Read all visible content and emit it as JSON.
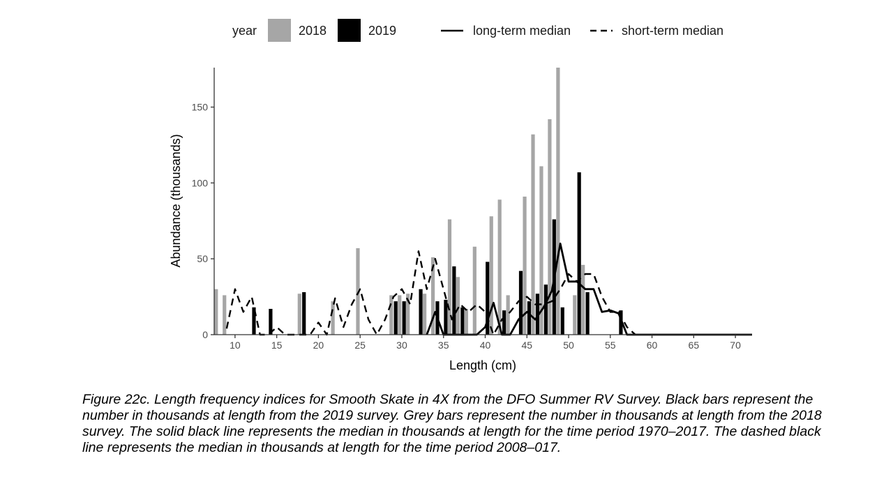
{
  "chart_data": {
    "type": "bar",
    "xlabel": "Length (cm)",
    "ylabel": "Abundance (thousands)",
    "xlim": [
      7.5,
      72
    ],
    "ylim": [
      0,
      176
    ],
    "x_ticks": [
      10,
      15,
      20,
      25,
      30,
      35,
      40,
      45,
      50,
      55,
      60,
      65,
      70
    ],
    "y_ticks": [
      0,
      50,
      100,
      150
    ],
    "legend": {
      "position": "top",
      "year_title": "year",
      "items": [
        {
          "label": "2018",
          "kind": "bar",
          "color": "#a6a6a6"
        },
        {
          "label": "2019",
          "kind": "bar",
          "color": "#000000"
        },
        {
          "label": "long-term median",
          "kind": "line",
          "dash": "solid"
        },
        {
          "label": "short-term median",
          "kind": "line",
          "dash": "dashed"
        }
      ]
    },
    "series": [
      {
        "name": "2018",
        "color": "#a6a6a6",
        "points": [
          [
            8,
            30
          ],
          [
            9,
            26
          ],
          [
            18,
            27
          ],
          [
            22,
            22
          ],
          [
            25,
            57
          ],
          [
            29,
            26
          ],
          [
            30,
            26
          ],
          [
            31,
            27
          ],
          [
            33,
            27
          ],
          [
            34,
            51
          ],
          [
            36,
            76
          ],
          [
            37,
            38
          ],
          [
            38,
            17
          ],
          [
            39,
            58
          ],
          [
            41,
            78
          ],
          [
            42,
            89
          ],
          [
            43,
            26
          ],
          [
            45,
            91
          ],
          [
            46,
            132
          ],
          [
            47,
            111
          ],
          [
            48,
            142
          ],
          [
            49,
            176
          ],
          [
            51,
            26
          ],
          [
            52,
            46
          ]
        ]
      },
      {
        "name": "2019",
        "color": "#000000",
        "points": [
          [
            12,
            18
          ],
          [
            14,
            17
          ],
          [
            18,
            28
          ],
          [
            29,
            22
          ],
          [
            30,
            22
          ],
          [
            32,
            30
          ],
          [
            34,
            22
          ],
          [
            35,
            23
          ],
          [
            36,
            45
          ],
          [
            37,
            18
          ],
          [
            40,
            48
          ],
          [
            42,
            16
          ],
          [
            44,
            42
          ],
          [
            45,
            22
          ],
          [
            46,
            27
          ],
          [
            47,
            33
          ],
          [
            48,
            76
          ],
          [
            49,
            18
          ],
          [
            51,
            107
          ],
          [
            52,
            28
          ],
          [
            56,
            16
          ]
        ]
      },
      {
        "name": "long-term median",
        "line": "solid",
        "points": [
          [
            33,
            0
          ],
          [
            34,
            15
          ],
          [
            35,
            0
          ],
          [
            36,
            0
          ],
          [
            37,
            0
          ],
          [
            38,
            0
          ],
          [
            39,
            0
          ],
          [
            40,
            5
          ],
          [
            41,
            21
          ],
          [
            42,
            0
          ],
          [
            43,
            0
          ],
          [
            44,
            10
          ],
          [
            45,
            15
          ],
          [
            46,
            10
          ],
          [
            47,
            18
          ],
          [
            48,
            29
          ],
          [
            49,
            60
          ],
          [
            50,
            35
          ],
          [
            51,
            35
          ],
          [
            52,
            30
          ],
          [
            53,
            30
          ],
          [
            54,
            15
          ],
          [
            55,
            16
          ],
          [
            56,
            14
          ],
          [
            57,
            0
          ],
          [
            72,
            0
          ]
        ]
      },
      {
        "name": "short-term median",
        "line": "dashed",
        "points": [
          [
            9,
            4
          ],
          [
            10,
            30
          ],
          [
            11,
            15
          ],
          [
            12,
            25
          ],
          [
            13,
            0
          ],
          [
            14,
            0
          ],
          [
            15,
            5
          ],
          [
            16,
            0
          ],
          [
            17,
            0
          ],
          [
            18,
            0
          ],
          [
            19,
            0
          ],
          [
            20,
            8
          ],
          [
            21,
            0
          ],
          [
            22,
            24
          ],
          [
            23,
            5
          ],
          [
            24,
            20
          ],
          [
            25,
            30
          ],
          [
            26,
            10
          ],
          [
            27,
            0
          ],
          [
            28,
            10
          ],
          [
            29,
            25
          ],
          [
            30,
            30
          ],
          [
            31,
            20
          ],
          [
            32,
            55
          ],
          [
            33,
            30
          ],
          [
            34,
            50
          ],
          [
            35,
            30
          ],
          [
            36,
            10
          ],
          [
            37,
            20
          ],
          [
            38,
            15
          ],
          [
            39,
            20
          ],
          [
            40,
            15
          ],
          [
            41,
            0
          ],
          [
            42,
            10
          ],
          [
            43,
            15
          ],
          [
            44,
            22
          ],
          [
            45,
            25
          ],
          [
            46,
            20
          ],
          [
            47,
            20
          ],
          [
            48,
            22
          ],
          [
            49,
            30
          ],
          [
            50,
            40
          ],
          [
            51,
            35
          ],
          [
            52,
            40
          ],
          [
            53,
            40
          ],
          [
            54,
            25
          ],
          [
            55,
            15
          ],
          [
            56,
            15
          ],
          [
            57,
            5
          ],
          [
            58,
            0
          ]
        ]
      }
    ]
  },
  "caption": "Figure 22c. Length frequency indices for Smooth Skate in 4X from the DFO Summer RV Survey. Black bars represent the number in thousands at length from the 2019 survey. Grey bars represent the number in thousands at length from the 2018 survey. The solid black line represents the median in thousands at length for the time period 1970–2017. The dashed black line represents the median in thousands at length for the time period 2008–017."
}
